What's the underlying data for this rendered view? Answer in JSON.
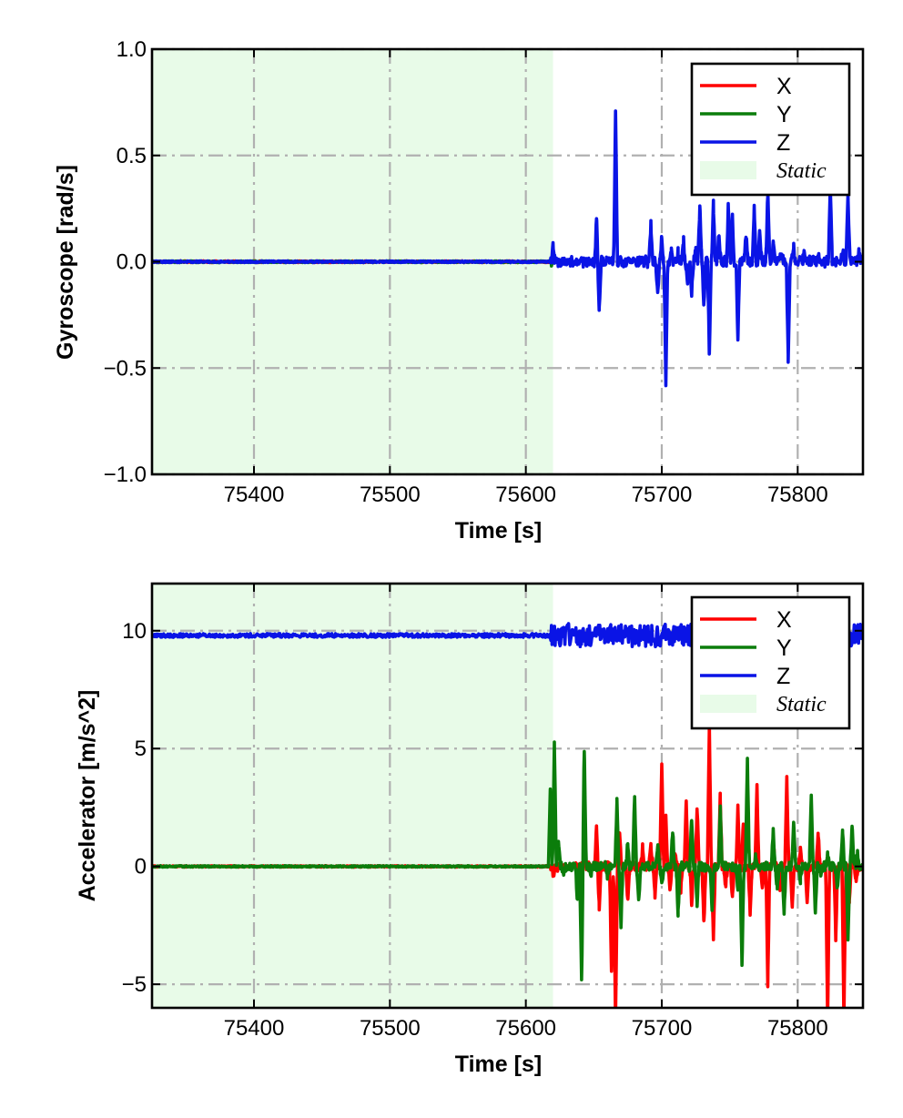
{
  "chart_data": [
    {
      "type": "line",
      "panel": "gyroscope",
      "xlabel": "Time [s]",
      "ylabel": "Gyroscope [rad/s]",
      "xlim": [
        75325,
        75848
      ],
      "ylim": [
        -1.0,
        1.0
      ],
      "x_ticks": [
        75400,
        75500,
        75600,
        75700,
        75800
      ],
      "x_tick_labels": [
        "75400",
        "75500",
        "75600",
        "75700",
        "75800"
      ],
      "y_ticks": [
        -1.0,
        -0.5,
        0.0,
        0.5,
        1.0
      ],
      "y_tick_labels": [
        "−1.0",
        "−0.5",
        "0.0",
        "0.5",
        "1.0"
      ],
      "grid": true,
      "legend_position": "top-right",
      "static_region": {
        "label": "Static",
        "x_start": 75325,
        "x_end": 75620,
        "color": "#e8fbe8"
      },
      "series": [
        {
          "name": "X",
          "color": "#ff0000",
          "baseline": 0.0,
          "noise": 0.004,
          "x_end": 75619,
          "events": [
            [
              75621,
              0.03
            ],
            [
              75621.8,
              -0.05
            ],
            [
              75655,
              -0.1
            ],
            [
              75666,
              -0.04
            ],
            [
              75695,
              0.08
            ],
            [
              75735,
              0.06
            ],
            [
              75777,
              -0.04
            ],
            [
              75800,
              0.05
            ],
            [
              75825,
              0.1
            ]
          ]
        },
        {
          "name": "Y",
          "color": "#0b7d0b",
          "baseline": 0.0,
          "noise": 0.004,
          "x_end": 75620,
          "events": [
            [
              75621,
              0.06
            ],
            [
              75622,
              -0.07
            ],
            [
              75655,
              -0.08
            ],
            [
              75667,
              0.1
            ],
            [
              75697,
              -0.1
            ],
            [
              75724,
              0.05
            ],
            [
              75777,
              -0.13
            ],
            [
              75795,
              -0.05
            ],
            [
              75838,
              -0.02
            ]
          ]
        },
        {
          "name": "Z",
          "color": "#0a14e6",
          "baseline": 0.0,
          "noise": 0.004,
          "events": [
            [
              75620,
              0.08
            ],
            [
              75652,
              0.19
            ],
            [
              75654,
              -0.23
            ],
            [
              75666,
              0.7
            ],
            [
              75692,
              0.18
            ],
            [
              75697,
              -0.17
            ],
            [
              75700,
              0.12
            ],
            [
              75703,
              -0.57
            ],
            [
              75707,
              0.05
            ],
            [
              75712,
              0.04
            ],
            [
              75716,
              0.1
            ],
            [
              75719,
              -0.12
            ],
            [
              75722,
              -0.15
            ],
            [
              75725,
              0.06
            ],
            [
              75728,
              0.26
            ],
            [
              75731,
              -0.2
            ],
            [
              75735,
              -0.43
            ],
            [
              75738,
              0.27
            ],
            [
              75742,
              0.14
            ],
            [
              75749,
              0.27
            ],
            [
              75752,
              0.2
            ],
            [
              75756,
              -0.36
            ],
            [
              75762,
              0.12
            ],
            [
              75768,
              0.25
            ],
            [
              75772,
              0.15
            ],
            [
              75778,
              0.32
            ],
            [
              75782,
              0.08
            ],
            [
              75788,
              0.05
            ],
            [
              75793,
              -0.46
            ],
            [
              75797,
              0.07
            ],
            [
              75805,
              0.04
            ],
            [
              75815,
              0.03
            ],
            [
              75824,
              0.35
            ],
            [
              75833,
              0.05
            ],
            [
              75837,
              0.32
            ],
            [
              75845,
              0.05
            ]
          ]
        }
      ]
    },
    {
      "type": "line",
      "panel": "accelerometer",
      "xlabel": "Time [s]",
      "ylabel": "Accelerator [m/s^2]",
      "xlim": [
        75325,
        75848
      ],
      "ylim": [
        -6.0,
        12.0
      ],
      "x_ticks": [
        75400,
        75500,
        75600,
        75700,
        75800
      ],
      "x_tick_labels": [
        "75400",
        "75500",
        "75600",
        "75700",
        "75800"
      ],
      "y_ticks": [
        -5,
        0,
        5,
        10
      ],
      "y_tick_labels": [
        "−5",
        "0",
        "5",
        "10"
      ],
      "grid": true,
      "legend_position": "top-right",
      "static_region": {
        "label": "Static",
        "x_start": 75325,
        "x_end": 75620,
        "color": "#e8fbe8"
      },
      "series": [
        {
          "name": "X",
          "color": "#ff0000",
          "baseline": 0.0,
          "noise": 0.03,
          "events": [
            [
              75620,
              -0.4
            ],
            [
              75652,
              1.6
            ],
            [
              75654,
              -1.7
            ],
            [
              75663,
              -4.5
            ],
            [
              75666,
              -6.5
            ],
            [
              75669,
              1.5
            ],
            [
              75675,
              -1.5
            ],
            [
              75686,
              0.9
            ],
            [
              75692,
              1.0
            ],
            [
              75695,
              -1.2
            ],
            [
              75700,
              4.5
            ],
            [
              75703,
              2.0
            ],
            [
              75706,
              -1.0
            ],
            [
              75710,
              0.6
            ],
            [
              75714,
              -1.0
            ],
            [
              75718,
              2.8
            ],
            [
              75722,
              -1.5
            ],
            [
              75726,
              2.5
            ],
            [
              75731,
              -2.5
            ],
            [
              75735,
              6.0
            ],
            [
              75738,
              -3.2
            ],
            [
              75743,
              3.0
            ],
            [
              75747,
              -0.8
            ],
            [
              75752,
              -1.3
            ],
            [
              75756,
              2.5
            ],
            [
              75760,
              1.8
            ],
            [
              75765,
              -2.0
            ],
            [
              75770,
              3.5
            ],
            [
              75774,
              -1.0
            ],
            [
              75778,
              -5.0
            ],
            [
              75782,
              1.0
            ],
            [
              75787,
              -1.0
            ],
            [
              75792,
              3.7
            ],
            [
              75796,
              -1.6
            ],
            [
              75802,
              0.7
            ],
            [
              75807,
              -1.5
            ],
            [
              75815,
              1.5
            ],
            [
              75822,
              -6.5
            ],
            [
              75828,
              -3.0
            ],
            [
              75834,
              -6.5
            ],
            [
              75838,
              -1.5
            ],
            [
              75843,
              -0.5
            ]
          ]
        },
        {
          "name": "Y",
          "color": "#0b7d0b",
          "baseline": 0.0,
          "noise": 0.03,
          "events": [
            [
              75618,
              3.3
            ],
            [
              75621,
              5.3
            ],
            [
              75624,
              1.0
            ],
            [
              75628,
              -0.4
            ],
            [
              75638,
              -1.5
            ],
            [
              75641,
              -4.8
            ],
            [
              75643,
              5.0
            ],
            [
              75648,
              -0.3
            ],
            [
              75660,
              -0.5
            ],
            [
              75667,
              2.8
            ],
            [
              75670,
              -2.5
            ],
            [
              75675,
              1.0
            ],
            [
              75680,
              2.9
            ],
            [
              75683,
              -1.5
            ],
            [
              75697,
              1.0
            ],
            [
              75700,
              -0.8
            ],
            [
              75708,
              1.5
            ],
            [
              75712,
              -2.0
            ],
            [
              75722,
              2.0
            ],
            [
              75726,
              -1.5
            ],
            [
              75737,
              -2.0
            ],
            [
              75743,
              2.5
            ],
            [
              75756,
              -1.0
            ],
            [
              75759,
              -4.3
            ],
            [
              75763,
              4.6
            ],
            [
              75769,
              0.6
            ],
            [
              75782,
              1.5
            ],
            [
              75785,
              -1.0
            ],
            [
              75790,
              -2.0
            ],
            [
              75797,
              2.0
            ],
            [
              75802,
              -0.6
            ],
            [
              75810,
              3.0
            ],
            [
              75813,
              -2.0
            ],
            [
              75817,
              -0.3
            ],
            [
              75822,
              0.5
            ],
            [
              75829,
              -1.0
            ],
            [
              75833,
              1.5
            ],
            [
              75837,
              -3.0
            ],
            [
              75840,
              1.8
            ],
            [
              75844,
              0.5
            ]
          ]
        },
        {
          "name": "Z",
          "color": "#0a14e6",
          "baseline": 9.8,
          "noise": 0.08,
          "events": []
        }
      ]
    }
  ]
}
